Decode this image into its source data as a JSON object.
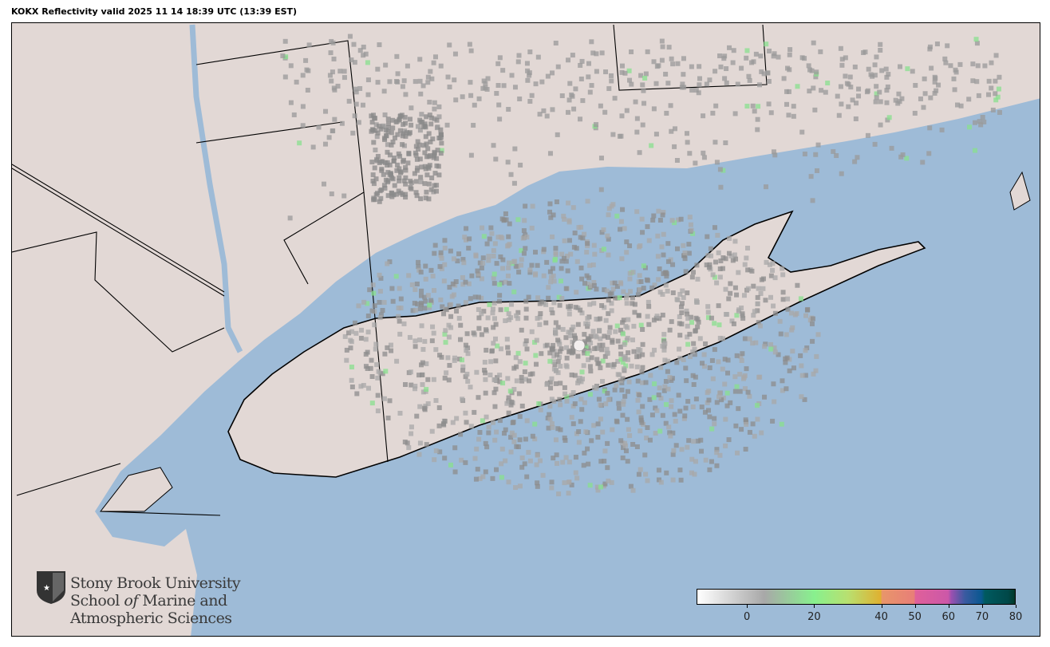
{
  "title": "KOKX Reflectivity valid 2025 11 14 18:39 UTC (13:39 EST)",
  "colors": {
    "land": "#e2d8d5",
    "water": "#9ebbd7",
    "border": "#000000",
    "radar_site": "#f2eeee"
  },
  "colorbar": {
    "range": [
      -15,
      80
    ],
    "ticks": [
      "0",
      "20",
      "40",
      "50",
      "60",
      "70",
      "80"
    ],
    "tick_values": [
      0,
      20,
      40,
      50,
      60,
      70,
      80
    ],
    "stops": [
      {
        "v": -15,
        "c": "#ffffff"
      },
      {
        "v": 5,
        "c": "#a8a8a8"
      },
      {
        "v": 20,
        "c": "#88f08e"
      },
      {
        "v": 30,
        "c": "#b8e070"
      },
      {
        "v": 40,
        "c": "#e0b030"
      },
      {
        "v": 40.1,
        "c": "#e8966a"
      },
      {
        "v": 50,
        "c": "#e87e78"
      },
      {
        "v": 50.1,
        "c": "#e0609a"
      },
      {
        "v": 60,
        "c": "#cc58a8"
      },
      {
        "v": 61,
        "c": "#9a50b0"
      },
      {
        "v": 65,
        "c": "#3a5aa0"
      },
      {
        "v": 70,
        "c": "#0a5890"
      },
      {
        "v": 71,
        "c": "#005a60"
      },
      {
        "v": 78,
        "c": "#004848"
      },
      {
        "v": 80,
        "c": "#003828"
      }
    ]
  },
  "logo": {
    "line1": "Stony Brook University",
    "line2a": "School ",
    "line2b": "of",
    "line2c": " Marine and",
    "line3": "Atmospheric Sciences"
  }
}
